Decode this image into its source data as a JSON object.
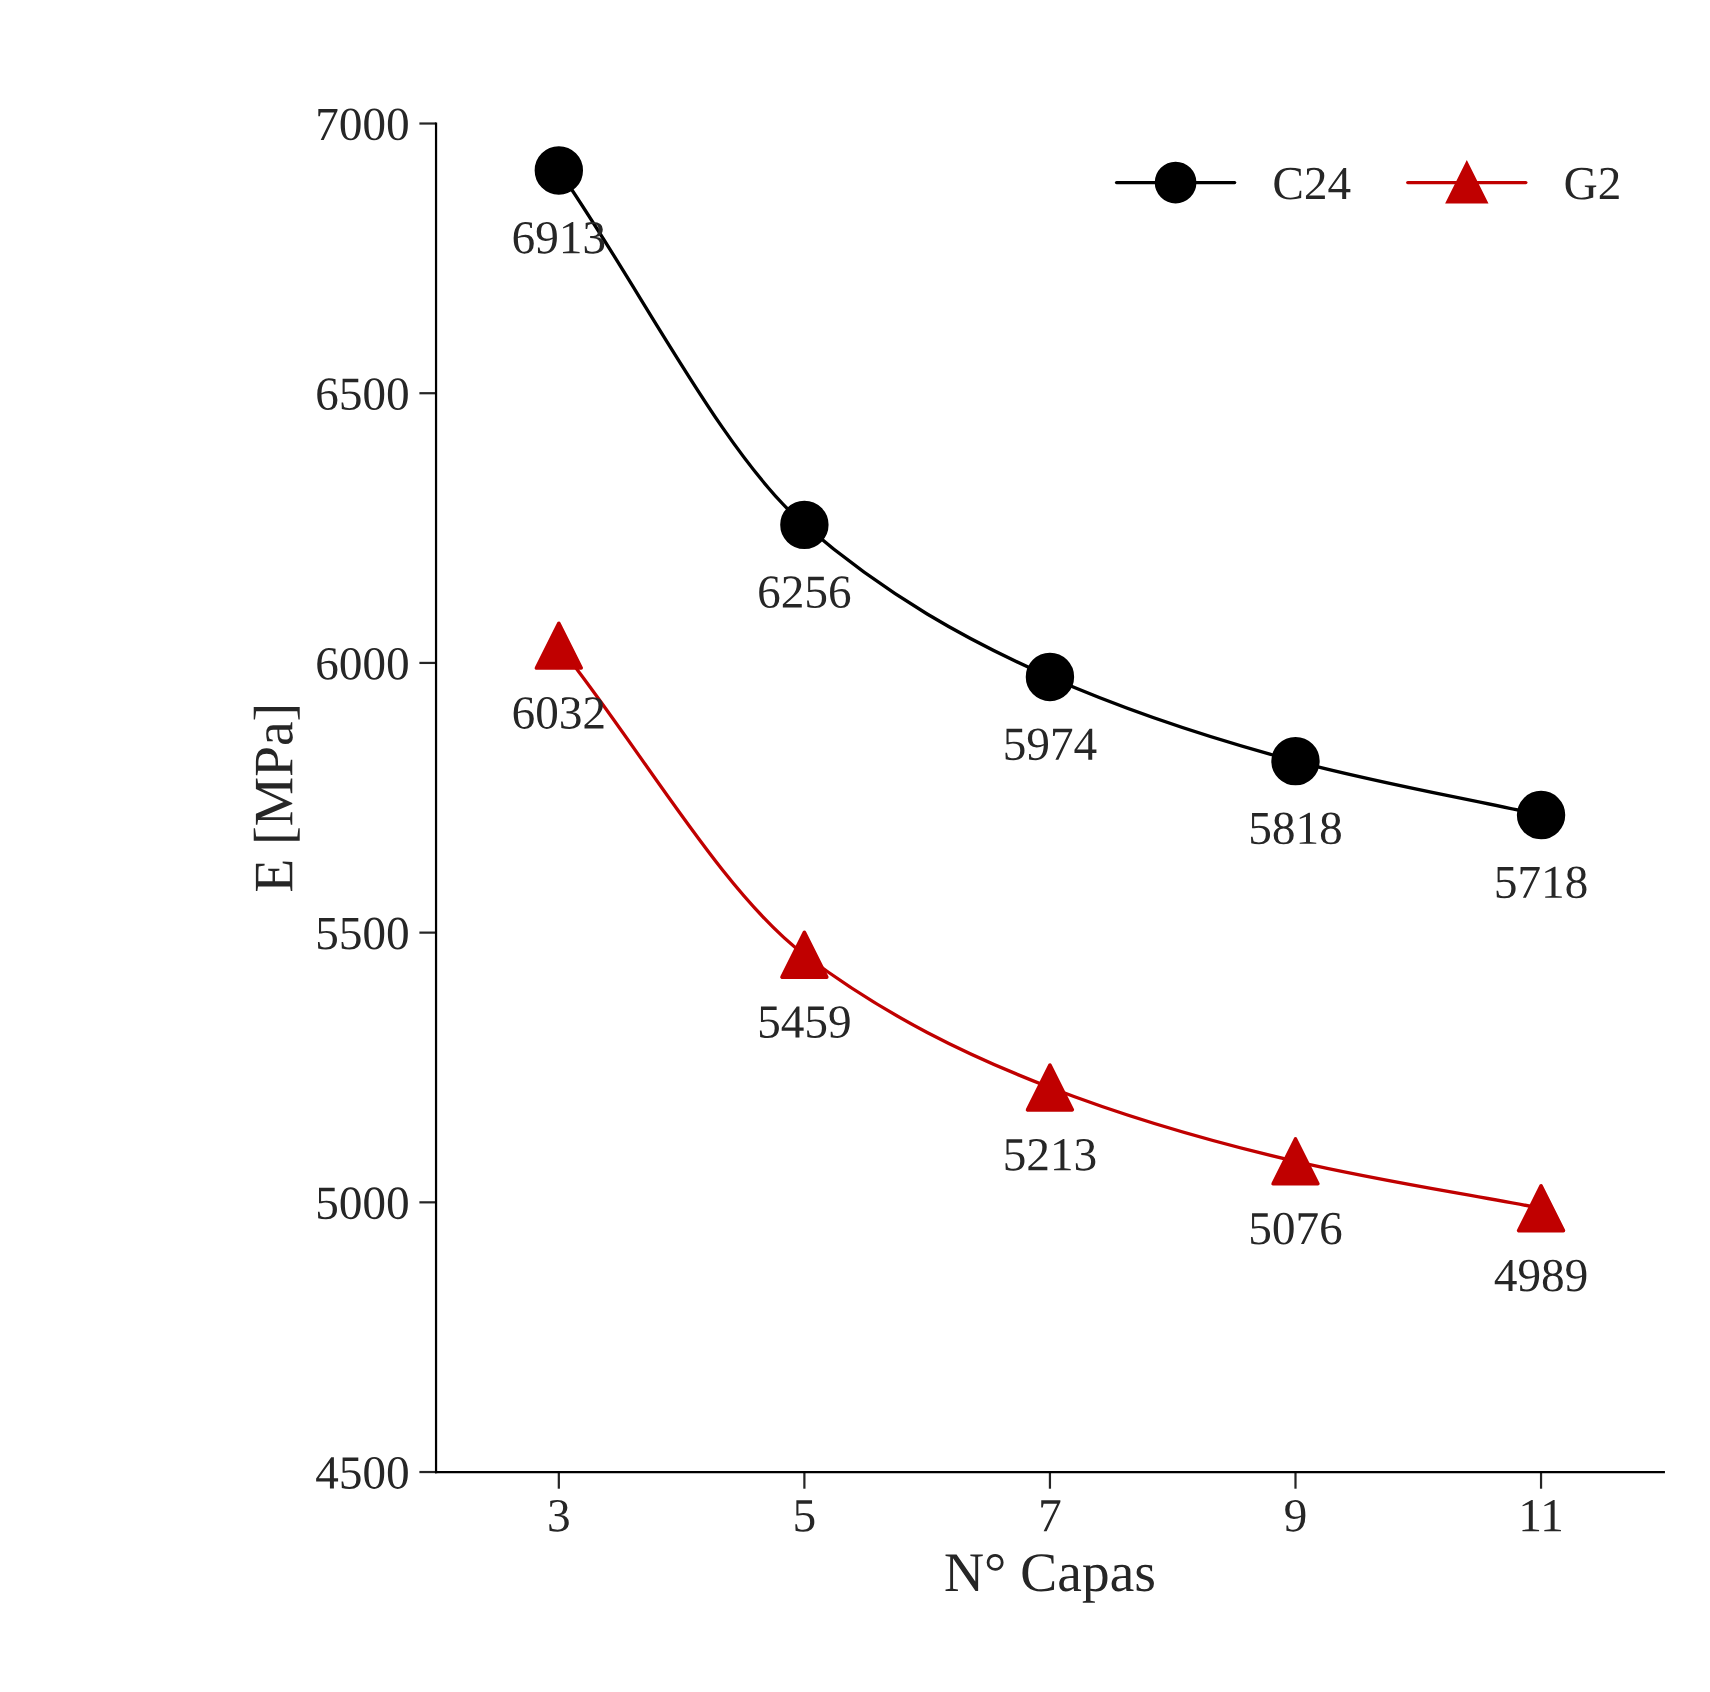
{
  "chart_data": {
    "type": "line",
    "xlabel": "N° Capas",
    "ylabel": "E [MPa]",
    "x": [
      3,
      5,
      7,
      9,
      11
    ],
    "series": [
      {
        "name": "C24",
        "color": "#000000",
        "marker": "circle",
        "line_style": "solid",
        "values": [
          6913,
          6256,
          5974,
          5818,
          5718
        ]
      },
      {
        "name": "G2",
        "color": "#c00000",
        "marker": "triangle",
        "line_style": "solid",
        "values": [
          6032,
          5459,
          5213,
          5076,
          4989
        ]
      }
    ],
    "xlim": [
      2,
      12
    ],
    "xticks": [
      3,
      5,
      7,
      9,
      11
    ],
    "ylim": [
      4500,
      7000
    ],
    "yticks": [
      4500,
      5000,
      5500,
      6000,
      6500,
      7000
    ],
    "data_labels": true,
    "legend": "top right",
    "grid": false
  }
}
